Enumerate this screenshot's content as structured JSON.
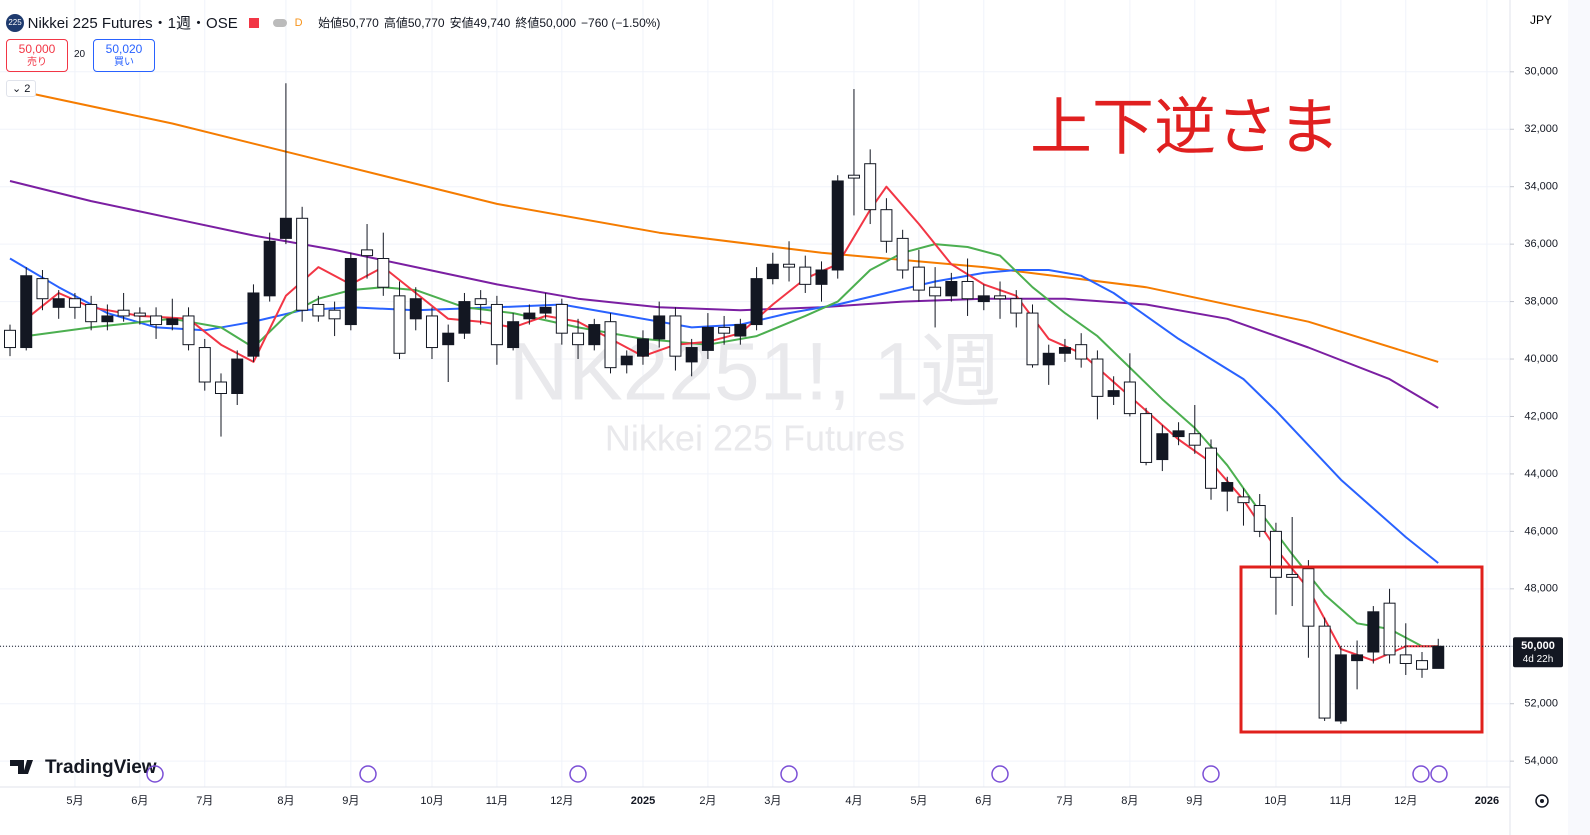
{
  "chart_data": {
    "type": "candlestick",
    "inverted": true,
    "symbol_badge": "225",
    "title": "Nikkei 225 Futures・1週・OSE",
    "flag": "D",
    "header_stats": [
      "始値50,770",
      "高値50,770",
      "安値49,740",
      "終値50,000",
      "−760 (−1.50%)"
    ],
    "sell_price": "50,000",
    "sell_label": "売り",
    "spread": "20",
    "buy_price": "50,020",
    "buy_label": "買い",
    "indicator_count": "2",
    "currency": "JPY",
    "watermark": "NK2251!, 1週",
    "watermark_sub": "Nikkei 225 Futures",
    "annotation": "上下逆さま",
    "brand": "TradingView",
    "price_label": "50,000",
    "countdown": "4d 22h",
    "categories": [
      null,
      null,
      null,
      null,
      "5月",
      null,
      null,
      null,
      "6月",
      null,
      null,
      null,
      "7月",
      null,
      null,
      null,
      null,
      "8月",
      null,
      null,
      null,
      "9月",
      null,
      null,
      null,
      null,
      "10月",
      null,
      null,
      null,
      "11月",
      null,
      null,
      null,
      "12月",
      null,
      null,
      null,
      null,
      "2025",
      null,
      null,
      null,
      "2月",
      null,
      null,
      null,
      "3月",
      null,
      null,
      null,
      null,
      "4月",
      null,
      null,
      null,
      "5月",
      null,
      null,
      null,
      "6月",
      null,
      null,
      null,
      null,
      "7月",
      null,
      null,
      null,
      "8月",
      null,
      null,
      null,
      "9月",
      null,
      null,
      null,
      null,
      "10月",
      null,
      null,
      null,
      "11月",
      null,
      null,
      null,
      "12月",
      null,
      null,
      null,
      null,
      "2026"
    ],
    "open": [
      39000,
      39600,
      37200,
      38200,
      37900,
      38100,
      38700,
      38300,
      38400,
      38500,
      38800,
      38500,
      39600,
      40800,
      41200,
      39900,
      37800,
      35800,
      35100,
      38100,
      38300,
      38800,
      36200,
      36500,
      37800,
      38600,
      38500,
      39500,
      39100,
      37900,
      38100,
      39600,
      38600,
      38400,
      38100,
      39100,
      39500,
      38700,
      40200,
      39900,
      39300,
      38500,
      40100,
      39700,
      38900,
      39200,
      38800,
      37200,
      36700,
      36800,
      37400,
      36900,
      33600,
      33200,
      34800,
      35800,
      36800,
      37500,
      37800,
      37300,
      38000,
      37800,
      37900,
      38400,
      40200,
      39800,
      39500,
      40000,
      41300,
      40800,
      41900,
      43500,
      42700,
      42600,
      43100,
      44600,
      44800,
      45100,
      46000,
      47500,
      47300,
      49300,
      52600,
      50500,
      50200,
      48500,
      50300,
      50500,
      50770,
      null,
      null,
      null
    ],
    "high": [
      39900,
      39700,
      38300,
      38600,
      38600,
      39000,
      39000,
      38700,
      38800,
      39300,
      39000,
      39700,
      41100,
      42700,
      41600,
      40100,
      38000,
      36000,
      38700,
      38700,
      39200,
      39000,
      37200,
      37800,
      40000,
      39000,
      40000,
      40800,
      39300,
      38800,
      40200,
      39700,
      38800,
      38600,
      39500,
      40000,
      39700,
      40500,
      40500,
      40200,
      39600,
      40400,
      40600,
      40000,
      39500,
      39500,
      39000,
      37400,
      37300,
      37700,
      38000,
      37200,
      35000,
      35300,
      36300,
      37200,
      38000,
      38900,
      38000,
      38500,
      38300,
      38600,
      38900,
      40300,
      40900,
      40100,
      40300,
      42100,
      41600,
      42000,
      43700,
      43900,
      43000,
      43300,
      44900,
      45300,
      45800,
      46200,
      48900,
      48600,
      50400,
      52600,
      52700,
      51500,
      50600,
      50600,
      51000,
      51100,
      50770,
      null,
      null,
      null
    ],
    "low": [
      38800,
      36800,
      36900,
      37600,
      37700,
      37800,
      38100,
      37700,
      38200,
      38200,
      37900,
      38200,
      39300,
      40500,
      39700,
      37400,
      35600,
      30400,
      34700,
      37800,
      38000,
      36300,
      35300,
      35600,
      37300,
      37500,
      38200,
      38800,
      37700,
      37600,
      37800,
      38400,
      38100,
      37700,
      37900,
      38600,
      38600,
      38400,
      39700,
      39000,
      38000,
      38200,
      39300,
      38400,
      38500,
      38600,
      36800,
      36300,
      35900,
      36400,
      36600,
      33600,
      30600,
      32700,
      34400,
      35500,
      36200,
      36800,
      37000,
      36500,
      37400,
      37300,
      37600,
      38100,
      39500,
      39300,
      39100,
      39700,
      40600,
      39800,
      41700,
      42300,
      42200,
      41600,
      42800,
      44100,
      44500,
      44700,
      45700,
      45500,
      47000,
      49000,
      50000,
      49800,
      48600,
      48000,
      49200,
      50200,
      49740,
      null,
      null,
      null
    ],
    "close": [
      39600,
      37100,
      37900,
      37900,
      38200,
      38700,
      38500,
      38500,
      38500,
      38800,
      38600,
      39500,
      40800,
      41200,
      40000,
      37700,
      35900,
      35100,
      38300,
      38500,
      38600,
      36500,
      36400,
      37500,
      39800,
      37900,
      39600,
      39100,
      38000,
      38100,
      39500,
      38700,
      38400,
      38200,
      39100,
      39500,
      38800,
      40300,
      39900,
      39300,
      38500,
      39900,
      39600,
      38900,
      39100,
      38800,
      37200,
      36700,
      36800,
      37400,
      36900,
      33800,
      33700,
      34800,
      35900,
      36900,
      37600,
      37800,
      37300,
      37900,
      37800,
      37900,
      38400,
      40200,
      39800,
      39600,
      40000,
      41300,
      41100,
      41900,
      43600,
      42600,
      42500,
      43000,
      44500,
      44300,
      45000,
      46000,
      47600,
      47600,
      49300,
      52500,
      50300,
      50300,
      48800,
      50300,
      50600,
      50800,
      50000,
      null,
      null,
      null
    ],
    "series": [
      {
        "color": "#f57c00",
        "x": [
          0,
          10,
          20,
          30,
          40,
          50,
          60,
          70,
          80,
          88
        ],
        "values": [
          30600,
          31800,
          33200,
          34600,
          35600,
          36300,
          36800,
          37500,
          38700,
          40100
        ]
      },
      {
        "color": "#7b1fa2",
        "x": [
          0,
          5,
          10,
          15,
          20,
          25,
          30,
          35,
          40,
          45,
          50,
          55,
          60,
          65,
          70,
          75,
          80,
          85,
          88
        ],
        "values": [
          33800,
          34500,
          35100,
          35700,
          36200,
          36800,
          37400,
          37900,
          38200,
          38300,
          38200,
          38000,
          37900,
          37900,
          38100,
          38600,
          39600,
          40700,
          41700
        ]
      },
      {
        "color": "#2962ff",
        "x": [
          0,
          3,
          6,
          9,
          12,
          15,
          18,
          21,
          25,
          30,
          34,
          38,
          42,
          45,
          48,
          51,
          54,
          57,
          60,
          62,
          64,
          66,
          68,
          70,
          72,
          74,
          76,
          78,
          80,
          82,
          84,
          86,
          88
        ],
        "values": [
          36500,
          37500,
          38400,
          38900,
          39000,
          38700,
          38300,
          38200,
          38300,
          38200,
          38100,
          38500,
          38900,
          38800,
          38400,
          38100,
          37700,
          37300,
          37000,
          36900,
          36900,
          37100,
          37700,
          38500,
          39300,
          40000,
          40700,
          41800,
          43000,
          44200,
          45200,
          46200,
          47100
        ]
      },
      {
        "color": "#4caf50",
        "x": [
          1,
          5,
          10,
          13,
          15,
          17,
          19,
          21,
          23,
          25,
          28,
          31,
          35,
          39,
          43,
          46,
          49,
          51,
          53,
          55,
          57,
          59,
          61,
          63,
          65,
          67,
          69,
          71,
          73,
          75,
          77,
          79,
          81,
          83,
          85,
          87,
          88
        ],
        "values": [
          39200,
          38900,
          38600,
          38900,
          39600,
          38500,
          37900,
          37600,
          37500,
          37600,
          38200,
          38400,
          38900,
          39300,
          39500,
          39200,
          38500,
          38000,
          36900,
          36300,
          36000,
          36100,
          36400,
          37500,
          38400,
          39200,
          40300,
          41400,
          42400,
          43700,
          45300,
          46800,
          48200,
          49200,
          49400,
          50000,
          50000
        ]
      },
      {
        "color": "#f23645",
        "x": [
          1,
          3,
          5,
          8,
          11,
          13,
          15,
          17,
          19,
          21,
          23,
          25,
          27,
          29,
          31,
          33,
          35,
          37,
          39,
          41,
          43,
          45,
          47,
          49,
          51,
          53,
          54,
          56,
          58,
          60,
          62,
          64,
          66,
          68,
          70,
          72,
          74,
          76,
          78,
          80,
          82,
          84,
          86,
          88
        ],
        "values": [
          38600,
          37700,
          38200,
          38500,
          38600,
          39500,
          40100,
          37800,
          36800,
          37400,
          36800,
          37700,
          38600,
          38700,
          38900,
          38500,
          38700,
          39300,
          39900,
          39500,
          39400,
          39100,
          38100,
          37200,
          36700,
          34800,
          34000,
          35300,
          36700,
          37400,
          37800,
          39300,
          39800,
          40800,
          41800,
          42800,
          43600,
          44900,
          46600,
          48000,
          50100,
          50500,
          50000,
          50000
        ]
      }
    ],
    "ylim": [
      27500,
      54900
    ],
    "yticks": [
      {
        "value": 30000,
        "label": "30,000"
      },
      {
        "value": 32000,
        "label": "32,000"
      },
      {
        "value": 34000,
        "label": "34,000"
      },
      {
        "value": 36000,
        "label": "36,000"
      },
      {
        "value": 38000,
        "label": "38,000"
      },
      {
        "value": 40000,
        "label": "40,000"
      },
      {
        "value": 42000,
        "label": "42,000"
      },
      {
        "value": 44000,
        "label": "44,000"
      },
      {
        "value": 46000,
        "label": "46,000"
      },
      {
        "value": 48000,
        "label": "48,000"
      },
      {
        "value": 50000,
        "label": "50,000"
      },
      {
        "value": 52000,
        "label": "52,000"
      },
      {
        "value": 54000,
        "label": "54,000"
      }
    ],
    "grid": true
  }
}
